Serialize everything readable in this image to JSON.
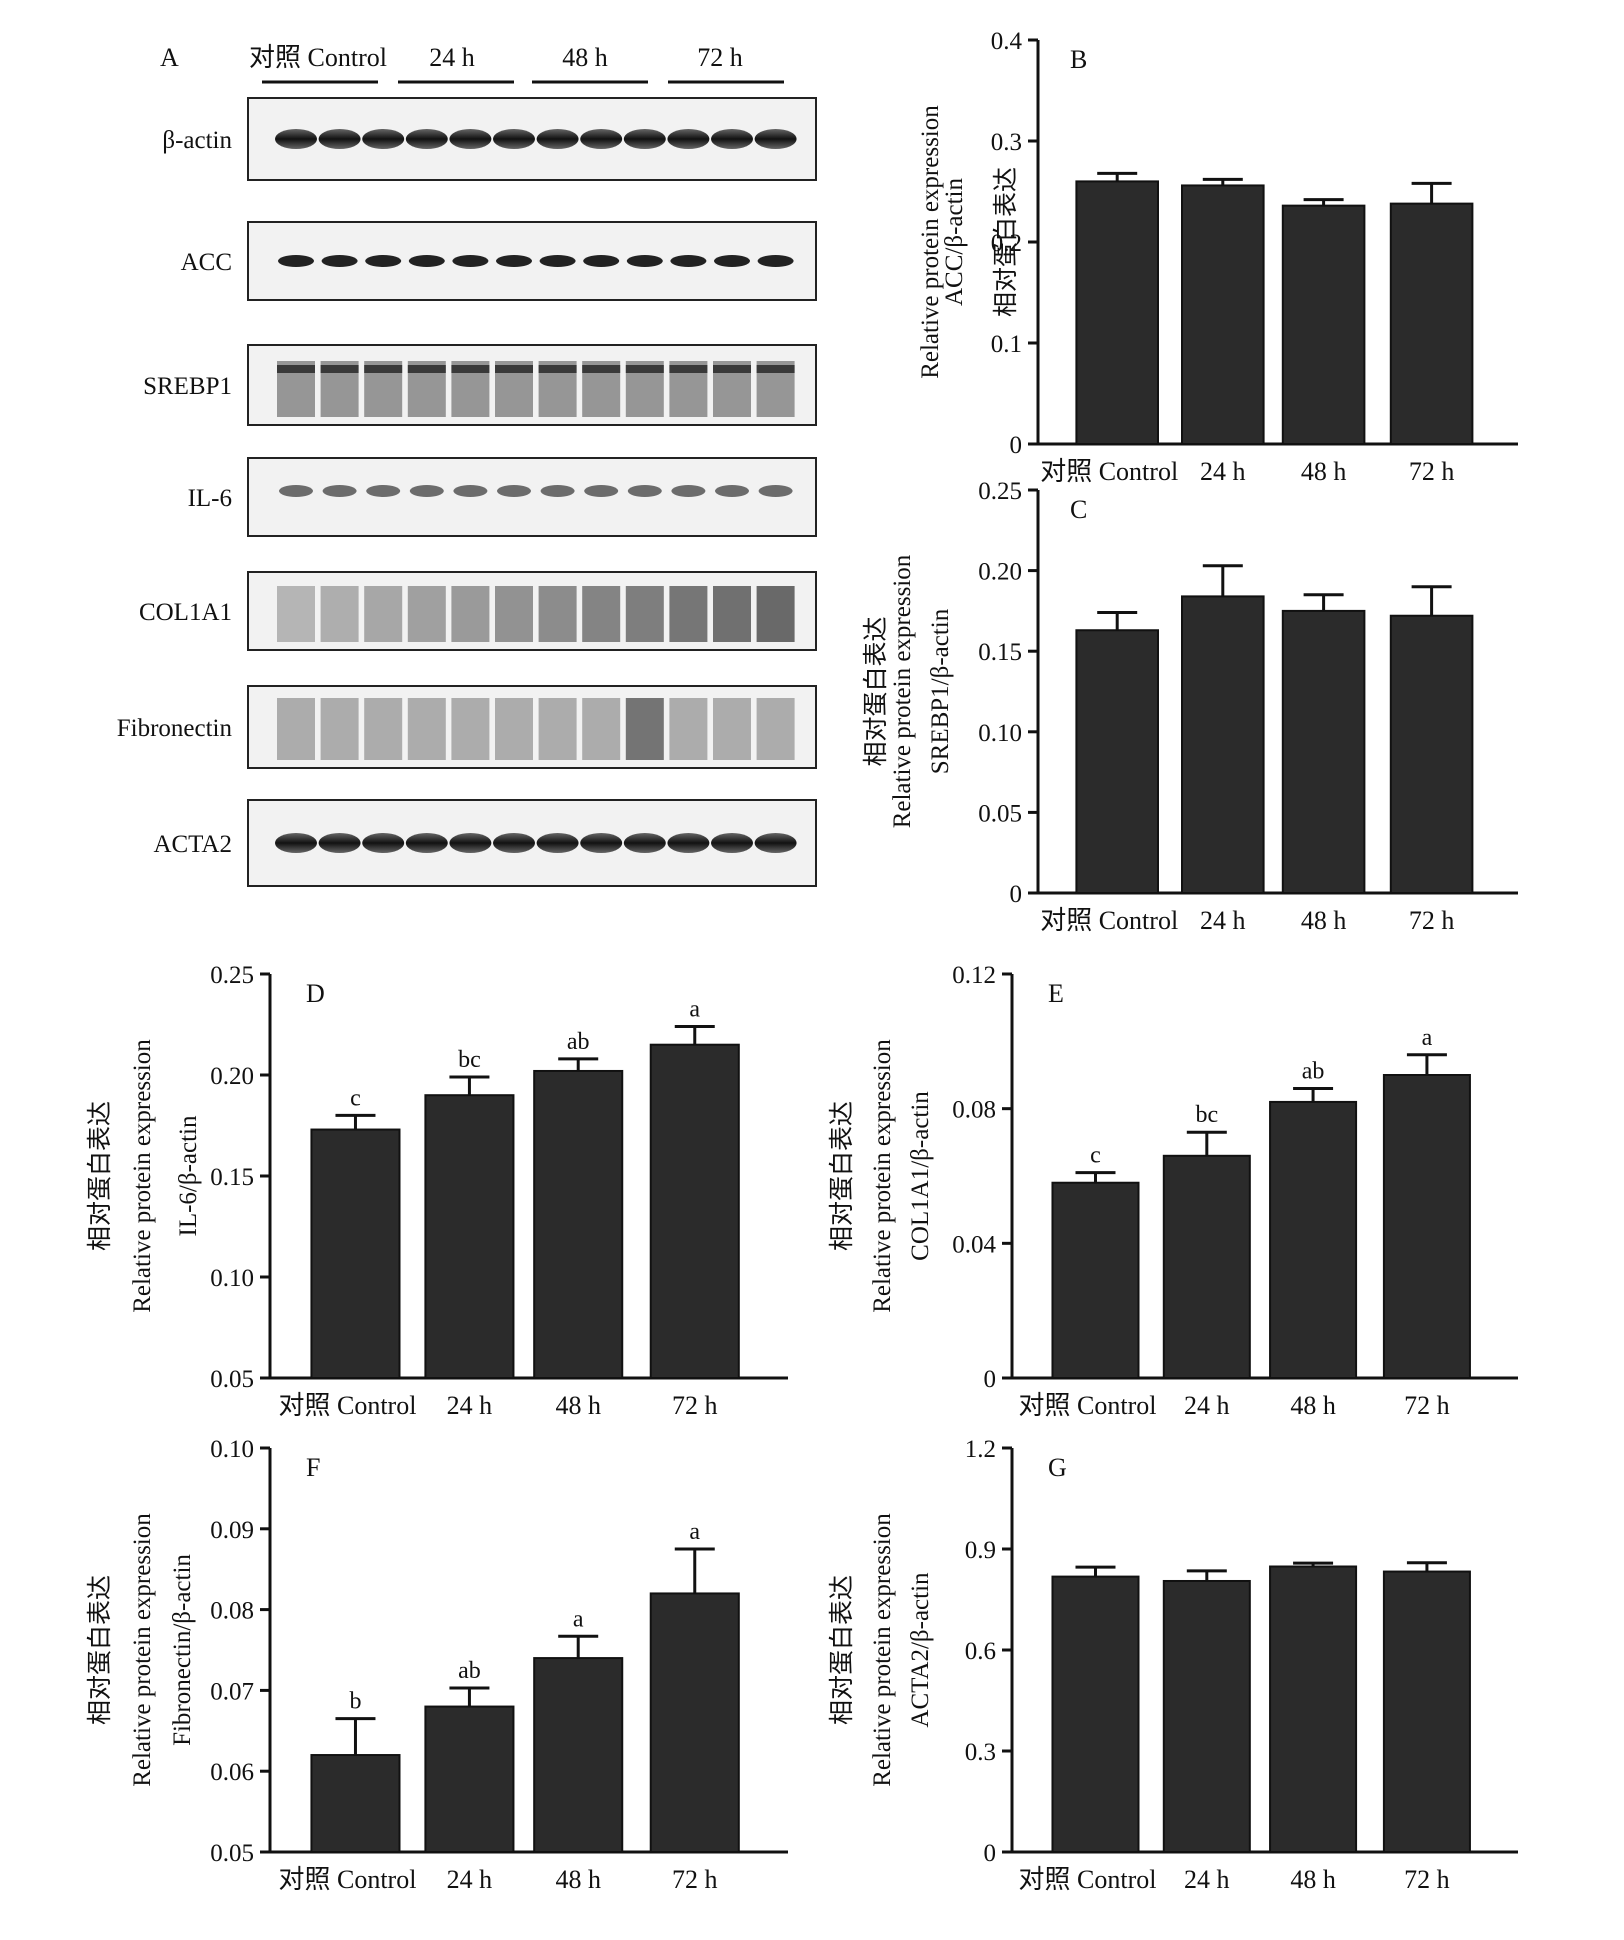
{
  "blot_panel": {
    "letter": "A",
    "groups": [
      "对照 Control",
      "24 h",
      "48 h",
      "72 h"
    ],
    "proteins": [
      "β-actin",
      "ACC",
      "SREBP1",
      "IL-6",
      "COL1A1",
      "Fibronectin",
      "ACTA2"
    ]
  },
  "y_axis_prefix_cn": "相对蛋白表达",
  "y_axis_prefix_en": "Relative protein expression",
  "chart_data": [
    {
      "letter": "B",
      "type": "bar",
      "categories": [
        "对照 Control",
        "24 h",
        "48 h",
        "72 h"
      ],
      "values": [
        0.26,
        0.256,
        0.236,
        0.238
      ],
      "errors": [
        0.008,
        0.006,
        0.006,
        0.02
      ],
      "sig": [],
      "ylabel": "ACC/β-actin",
      "ylim": [
        0,
        0.4
      ],
      "yticks": [
        "0",
        "0.1",
        "0.2",
        "0.3",
        "0.4"
      ]
    },
    {
      "letter": "C",
      "type": "bar",
      "categories": [
        "对照 Control",
        "24 h",
        "48 h",
        "72 h"
      ],
      "values": [
        0.163,
        0.184,
        0.175,
        0.172
      ],
      "errors": [
        0.011,
        0.019,
        0.01,
        0.018
      ],
      "sig": [],
      "ylabel": "SREBP1/β-actin",
      "ylim": [
        0,
        0.25
      ],
      "yticks": [
        "0",
        "0.05",
        "0.10",
        "0.15",
        "0.20",
        "0.25"
      ]
    },
    {
      "letter": "D",
      "type": "bar",
      "categories": [
        "对照 Control",
        "24 h",
        "48 h",
        "72 h"
      ],
      "values": [
        0.173,
        0.19,
        0.202,
        0.215
      ],
      "errors": [
        0.007,
        0.009,
        0.006,
        0.009
      ],
      "sig": [
        "c",
        "bc",
        "ab",
        "a"
      ],
      "ylabel": "IL-6/β-actin",
      "ylim": [
        0.05,
        0.25
      ],
      "yticks": [
        "0.05",
        "0.10",
        "0.15",
        "0.20",
        "0.25"
      ]
    },
    {
      "letter": "E",
      "type": "bar",
      "categories": [
        "对照 Control",
        "24 h",
        "48 h",
        "72 h"
      ],
      "values": [
        0.058,
        0.066,
        0.082,
        0.09
      ],
      "errors": [
        0.003,
        0.007,
        0.004,
        0.006
      ],
      "sig": [
        "c",
        "bc",
        "ab",
        "a"
      ],
      "ylabel": "COL1A1/β-actin",
      "ylim": [
        0,
        0.12
      ],
      "yticks": [
        "0",
        "0.04",
        "0.08",
        "0.12"
      ]
    },
    {
      "letter": "F",
      "type": "bar",
      "categories": [
        "对照 Control",
        "24 h",
        "48 h",
        "72 h"
      ],
      "values": [
        0.062,
        0.068,
        0.074,
        0.082
      ],
      "errors": [
        0.0045,
        0.0023,
        0.0027,
        0.0055
      ],
      "sig": [
        "b",
        "ab",
        "a",
        "a"
      ],
      "ylabel": "Fibronectin/β-actin",
      "ylim": [
        0.05,
        0.1
      ],
      "yticks": [
        "0.05",
        "0.06",
        "0.07",
        "0.08",
        "0.09",
        "0.10"
      ]
    },
    {
      "letter": "G",
      "type": "bar",
      "categories": [
        "对照 Control",
        "24 h",
        "48 h",
        "72 h"
      ],
      "values": [
        0.818,
        0.805,
        0.848,
        0.833
      ],
      "errors": [
        0.028,
        0.03,
        0.01,
        0.026
      ],
      "sig": [],
      "ylabel": "ACTA2/β-actin",
      "ylim": [
        0,
        1.2
      ],
      "yticks": [
        "0",
        "0.3",
        "0.6",
        "0.9",
        "1.2"
      ]
    }
  ]
}
